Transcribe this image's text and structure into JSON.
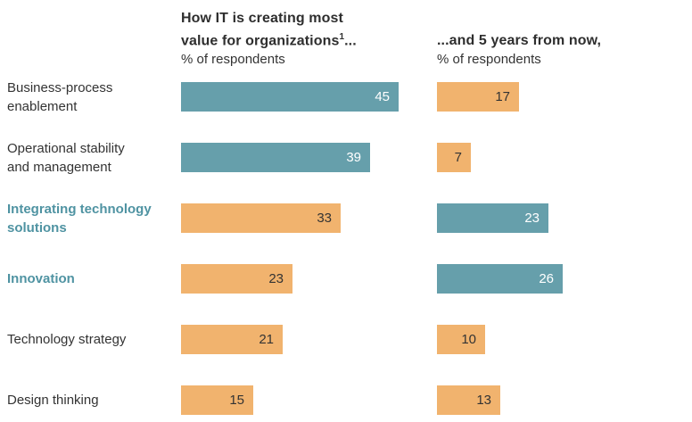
{
  "header": {
    "left": {
      "title_line1": "How IT is creating most",
      "title_line2": "value for organizations",
      "superscript": "1",
      "title_suffix": "...",
      "subtitle": "% of respondents"
    },
    "right": {
      "title": "...and 5 years from now,",
      "subtitle": "% of respondents"
    }
  },
  "chart_data": {
    "type": "bar",
    "orientation": "horizontal",
    "categories": [
      "Business-process enablement",
      "Operational stability and management",
      "Integrating technology solutions",
      "Innovation",
      "Technology strategy",
      "Design thinking"
    ],
    "series": [
      {
        "name": "How IT is creating most value for organizations, % of respondents",
        "values": [
          45,
          39,
          33,
          23,
          21,
          15
        ],
        "bar_colors": [
          "teal",
          "teal",
          "orange",
          "orange",
          "orange",
          "orange"
        ]
      },
      {
        "name": "...and 5 years from now, % of respondents",
        "values": [
          17,
          7,
          23,
          26,
          10,
          13
        ],
        "bar_colors": [
          "orange",
          "orange",
          "teal",
          "teal",
          "orange",
          "orange"
        ]
      }
    ],
    "xlim": [
      0,
      50
    ],
    "grid": false,
    "legend": "none",
    "value_labels": "inside-right",
    "highlighted_categories": [
      "Integrating technology solutions",
      "Innovation"
    ],
    "palette": {
      "teal": "#669fab",
      "orange": "#f1b36e",
      "label_highlight": "#4f93a2",
      "label_gray": "#333333",
      "value_on_teal": "#ffffff",
      "value_on_orange": "#333333"
    }
  },
  "rows": [
    {
      "label_line1": "Business-process",
      "label_line2": "enablement",
      "highlight": false,
      "now": {
        "value": 45,
        "color": "teal"
      },
      "future": {
        "value": 17,
        "color": "orange"
      }
    },
    {
      "label_line1": "Operational stability",
      "label_line2": "and management",
      "highlight": false,
      "now": {
        "value": 39,
        "color": "teal"
      },
      "future": {
        "value": 7,
        "color": "orange"
      }
    },
    {
      "label_line1": "Integrating technology",
      "label_line2": "solutions",
      "highlight": true,
      "now": {
        "value": 33,
        "color": "orange"
      },
      "future": {
        "value": 23,
        "color": "teal"
      }
    },
    {
      "label_line1": "Innovation",
      "label_line2": "",
      "highlight": true,
      "now": {
        "value": 23,
        "color": "orange"
      },
      "future": {
        "value": 26,
        "color": "teal"
      }
    },
    {
      "label_line1": "Technology strategy",
      "label_line2": "",
      "highlight": false,
      "now": {
        "value": 21,
        "color": "orange"
      },
      "future": {
        "value": 10,
        "color": "orange"
      }
    },
    {
      "label_line1": "Design thinking",
      "label_line2": "",
      "highlight": false,
      "now": {
        "value": 15,
        "color": "orange"
      },
      "future": {
        "value": 13,
        "color": "orange"
      }
    }
  ]
}
